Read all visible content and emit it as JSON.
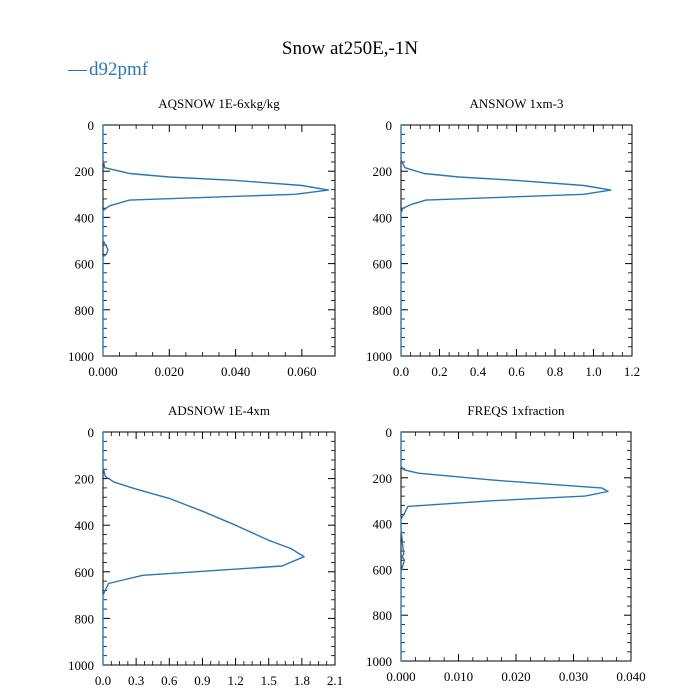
{
  "figure": {
    "title": "Snow at250E,-1N",
    "legend": {
      "label": "d92pmf",
      "color": "#2a77b4"
    }
  },
  "chart_data": [
    {
      "type": "line",
      "title": "AQSNOW  1E-6xkg/kg",
      "series_name": "d92pmf",
      "xlim": [
        0,
        0.07
      ],
      "ylim": [
        1000,
        0
      ],
      "xticks": [
        0.0,
        0.02,
        0.04,
        0.06
      ],
      "xtick_labels": [
        "0.000",
        "0.020",
        "0.040",
        "0.060"
      ],
      "yticks": [
        0,
        200,
        400,
        600,
        800,
        1000
      ],
      "ytick_labels": [
        "0",
        "200",
        "400",
        "600",
        "800",
        "1000"
      ],
      "x": [
        0,
        0,
        0.0005,
        0.008,
        0.02,
        0.04,
        0.06,
        0.068,
        0.058,
        0.008,
        0.002,
        0,
        0,
        0,
        0,
        0.0008,
        0.0015,
        0.001,
        0,
        0,
        0
      ],
      "y": [
        0,
        150,
        185,
        210,
        225,
        240,
        262,
        282,
        300,
        325,
        350,
        370,
        380,
        430,
        500,
        520,
        540,
        560,
        570,
        600,
        1000
      ]
    },
    {
      "type": "line",
      "title": "ANSNOW  1xm-3",
      "series_name": "d92pmf",
      "xlim": [
        0,
        1.2
      ],
      "ylim": [
        1000,
        0
      ],
      "xticks": [
        0.0,
        0.2,
        0.4,
        0.6,
        0.8,
        1.0,
        1.2
      ],
      "xtick_labels": [
        "0.0",
        "0.2",
        "0.4",
        "0.6",
        "0.8",
        "1.0",
        "1.2"
      ],
      "yticks": [
        0,
        200,
        400,
        600,
        800,
        1000
      ],
      "ytick_labels": [
        "0",
        "200",
        "400",
        "600",
        "800",
        "1000"
      ],
      "x": [
        0,
        0,
        0.02,
        0.12,
        0.3,
        0.6,
        0.95,
        1.09,
        0.95,
        0.13,
        0.05,
        0.01,
        0,
        0
      ],
      "y": [
        0,
        150,
        185,
        210,
        225,
        240,
        262,
        282,
        300,
        325,
        345,
        360,
        380,
        1000
      ]
    },
    {
      "type": "line",
      "title": "ADSNOW  1E-4xm",
      "series_name": "d92pmf",
      "xlim": [
        0,
        2.1
      ],
      "ylim": [
        1000,
        0
      ],
      "xticks": [
        0.0,
        0.3,
        0.6,
        0.9,
        1.2,
        1.5,
        1.8,
        2.1
      ],
      "xtick_labels": [
        "0.0",
        "0.3",
        "0.6",
        "0.9",
        "1.2",
        "1.5",
        "1.8",
        "2.1"
      ],
      "yticks": [
        0,
        200,
        400,
        600,
        800,
        1000
      ],
      "ytick_labels": [
        "0",
        "200",
        "400",
        "600",
        "800",
        "1000"
      ],
      "x": [
        0,
        0,
        0.02,
        0.1,
        0.3,
        0.6,
        0.9,
        1.2,
        1.5,
        1.7,
        1.82,
        1.62,
        0.36,
        0.05,
        0,
        0
      ],
      "y": [
        0,
        150,
        190,
        215,
        245,
        285,
        340,
        400,
        465,
        500,
        535,
        575,
        615,
        650,
        700,
        1000
      ]
    },
    {
      "type": "line",
      "title": "FREQS  1xfraction",
      "series_name": "d92pmf",
      "xlim": [
        0,
        0.04
      ],
      "ylim": [
        1000,
        0
      ],
      "xticks": [
        0.0,
        0.01,
        0.02,
        0.03,
        0.04
      ],
      "xtick_labels": [
        "0.000",
        "0.010",
        "0.020",
        "0.030",
        "0.040"
      ],
      "yticks": [
        0,
        200,
        400,
        600,
        800,
        1000
      ],
      "ytick_labels": [
        "0",
        "200",
        "400",
        "600",
        "800",
        "1000"
      ],
      "x": [
        0,
        0,
        0.0005,
        0.003,
        0.016,
        0.035,
        0.036,
        0.032,
        0.016,
        0.0012,
        0.0005,
        0,
        0,
        0.0004,
        0.0005,
        0.0002,
        0.0006,
        0,
        0
      ],
      "y": [
        0,
        150,
        165,
        180,
        210,
        245,
        260,
        280,
        300,
        325,
        360,
        380,
        420,
        520,
        530,
        545,
        560,
        610,
        1000
      ]
    }
  ]
}
